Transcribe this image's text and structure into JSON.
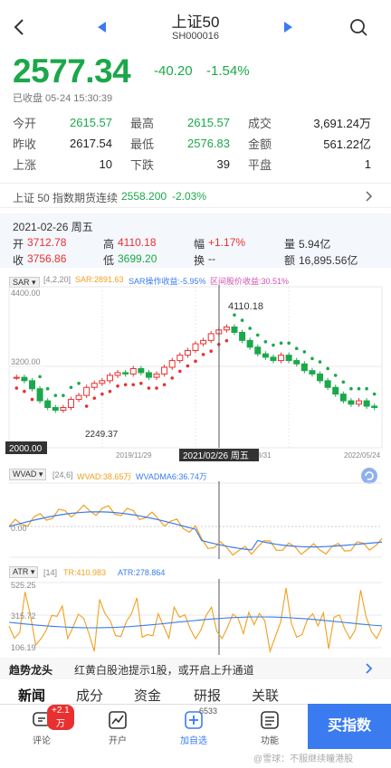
{
  "header": {
    "title": "上证50",
    "code": "SH000016"
  },
  "quote": {
    "price": "2577.34",
    "change": "-40.20",
    "change_pct": "-1.54%",
    "status": "已收盘 05-24 15:30:39"
  },
  "stats": [
    [
      {
        "label": "今开",
        "value": "2615.57",
        "color": "green"
      },
      {
        "label": "最高",
        "value": "2615.57",
        "color": "green"
      },
      {
        "label": "成交",
        "value": "3,691.24万",
        "color": "dark"
      }
    ],
    [
      {
        "label": "昨收",
        "value": "2617.54",
        "color": "dark"
      },
      {
        "label": "最低",
        "value": "2576.83",
        "color": "green"
      },
      {
        "label": "金额",
        "value": "561.22亿",
        "color": "dark"
      }
    ],
    [
      {
        "label": "上涨",
        "value": "10",
        "color": "dark"
      },
      {
        "label": "下跌",
        "value": "39",
        "color": "dark"
      },
      {
        "label": "平盘",
        "value": "1",
        "color": "dark"
      }
    ]
  ],
  "futures": {
    "name": "上证 50 指数期货连续",
    "price": "2558.200",
    "pct": "-2.03%"
  },
  "crosshair": {
    "date": "2021-02-26 周五",
    "open_label": "开",
    "open": "3712.78",
    "high_label": "高",
    "high": "4110.18",
    "amp_label": "幅",
    "amp": "+1.17%",
    "vol_label": "量",
    "vol": "5.94亿",
    "close_label": "收",
    "close": "3756.86",
    "low_label": "低",
    "low": "3699.20",
    "turn_label": "换",
    "turn": "--",
    "amount_label": "额",
    "amount": "16,895.56亿"
  },
  "main_chart": {
    "indicator": "SAR",
    "params": "[4,2,20]",
    "sar": "SAR:2891.63",
    "sar_profit": "SAR操作收益:-5.95%",
    "range_profit": "区间股价收益:30.51%",
    "y_labels": [
      "4400.00",
      "3200.00",
      "2000.00"
    ],
    "x_labels": [
      "2019/11/29",
      "2021/02/26 周五",
      "2022/05/24"
    ],
    "x_partial": "8/31",
    "max_label": "4110.18",
    "min_label": "2249.37"
  },
  "wvad": {
    "name": "WVAD",
    "params": "[24,6]",
    "v1": "WVAD:38.65万",
    "v2": "WVADMA6:36.74万",
    "zero": "0.00"
  },
  "atr": {
    "name": "ATR",
    "params": "[14]",
    "tr": "TR:410.983",
    "atr": "ATR:278.864",
    "y_labels": [
      "525.25",
      "315.72",
      "106.19"
    ]
  },
  "trend": {
    "label": "趋势龙头",
    "text": "红黄白股池提示1股，或开启上升通道"
  },
  "tabs": [
    "新闻",
    "成分",
    "资金",
    "研报",
    "关联"
  ],
  "nav": [
    {
      "label": "评论",
      "badge": "+2.1万"
    },
    {
      "label": "开户"
    },
    {
      "label": "加自选",
      "badge": "6533"
    },
    {
      "label": "功能"
    }
  ],
  "buy_button": "买指数",
  "watermark": "@雪球：不服继续瞳港股",
  "colors": {
    "up": "#e93030",
    "down": "#1aa84a",
    "accent": "#3a7bf0"
  }
}
